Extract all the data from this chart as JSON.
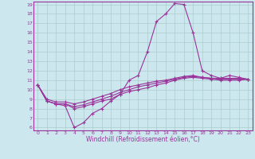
{
  "xlabel": "Windchill (Refroidissement éolien,°C)",
  "background_color": "#cce8ee",
  "line_color": "#993399",
  "grid_color": "#aacccc",
  "xlim": [
    -0.5,
    23.5
  ],
  "ylim": [
    5.7,
    19.3
  ],
  "xticks": [
    0,
    1,
    2,
    3,
    4,
    5,
    6,
    7,
    8,
    9,
    10,
    11,
    12,
    13,
    14,
    15,
    16,
    17,
    18,
    19,
    20,
    21,
    22,
    23
  ],
  "yticks": [
    6,
    7,
    8,
    9,
    10,
    11,
    12,
    13,
    14,
    15,
    16,
    17,
    18,
    19
  ],
  "series": [
    [
      10.5,
      8.8,
      8.5,
      8.3,
      6.0,
      6.5,
      7.5,
      8.0,
      8.8,
      9.5,
      11.0,
      11.5,
      14.0,
      17.2,
      18.0,
      19.1,
      19.0,
      16.0,
      12.0,
      11.5,
      11.2,
      11.5,
      11.3,
      11.1
    ],
    [
      10.5,
      8.8,
      8.5,
      8.5,
      8.0,
      8.2,
      8.5,
      8.8,
      9.0,
      9.5,
      9.8,
      10.0,
      10.2,
      10.5,
      10.7,
      11.0,
      11.2,
      11.3,
      11.2,
      11.1,
      11.0,
      11.0,
      11.0,
      11.1
    ],
    [
      10.5,
      8.8,
      8.5,
      8.5,
      8.2,
      8.4,
      8.7,
      9.0,
      9.3,
      9.7,
      10.0,
      10.3,
      10.5,
      10.7,
      10.9,
      11.1,
      11.3,
      11.4,
      11.3,
      11.2,
      11.1,
      11.1,
      11.1,
      11.1
    ],
    [
      10.5,
      9.0,
      8.7,
      8.7,
      8.5,
      8.7,
      9.0,
      9.3,
      9.6,
      10.0,
      10.3,
      10.5,
      10.7,
      10.9,
      11.0,
      11.2,
      11.4,
      11.5,
      11.3,
      11.2,
      11.2,
      11.2,
      11.2,
      11.1
    ]
  ]
}
